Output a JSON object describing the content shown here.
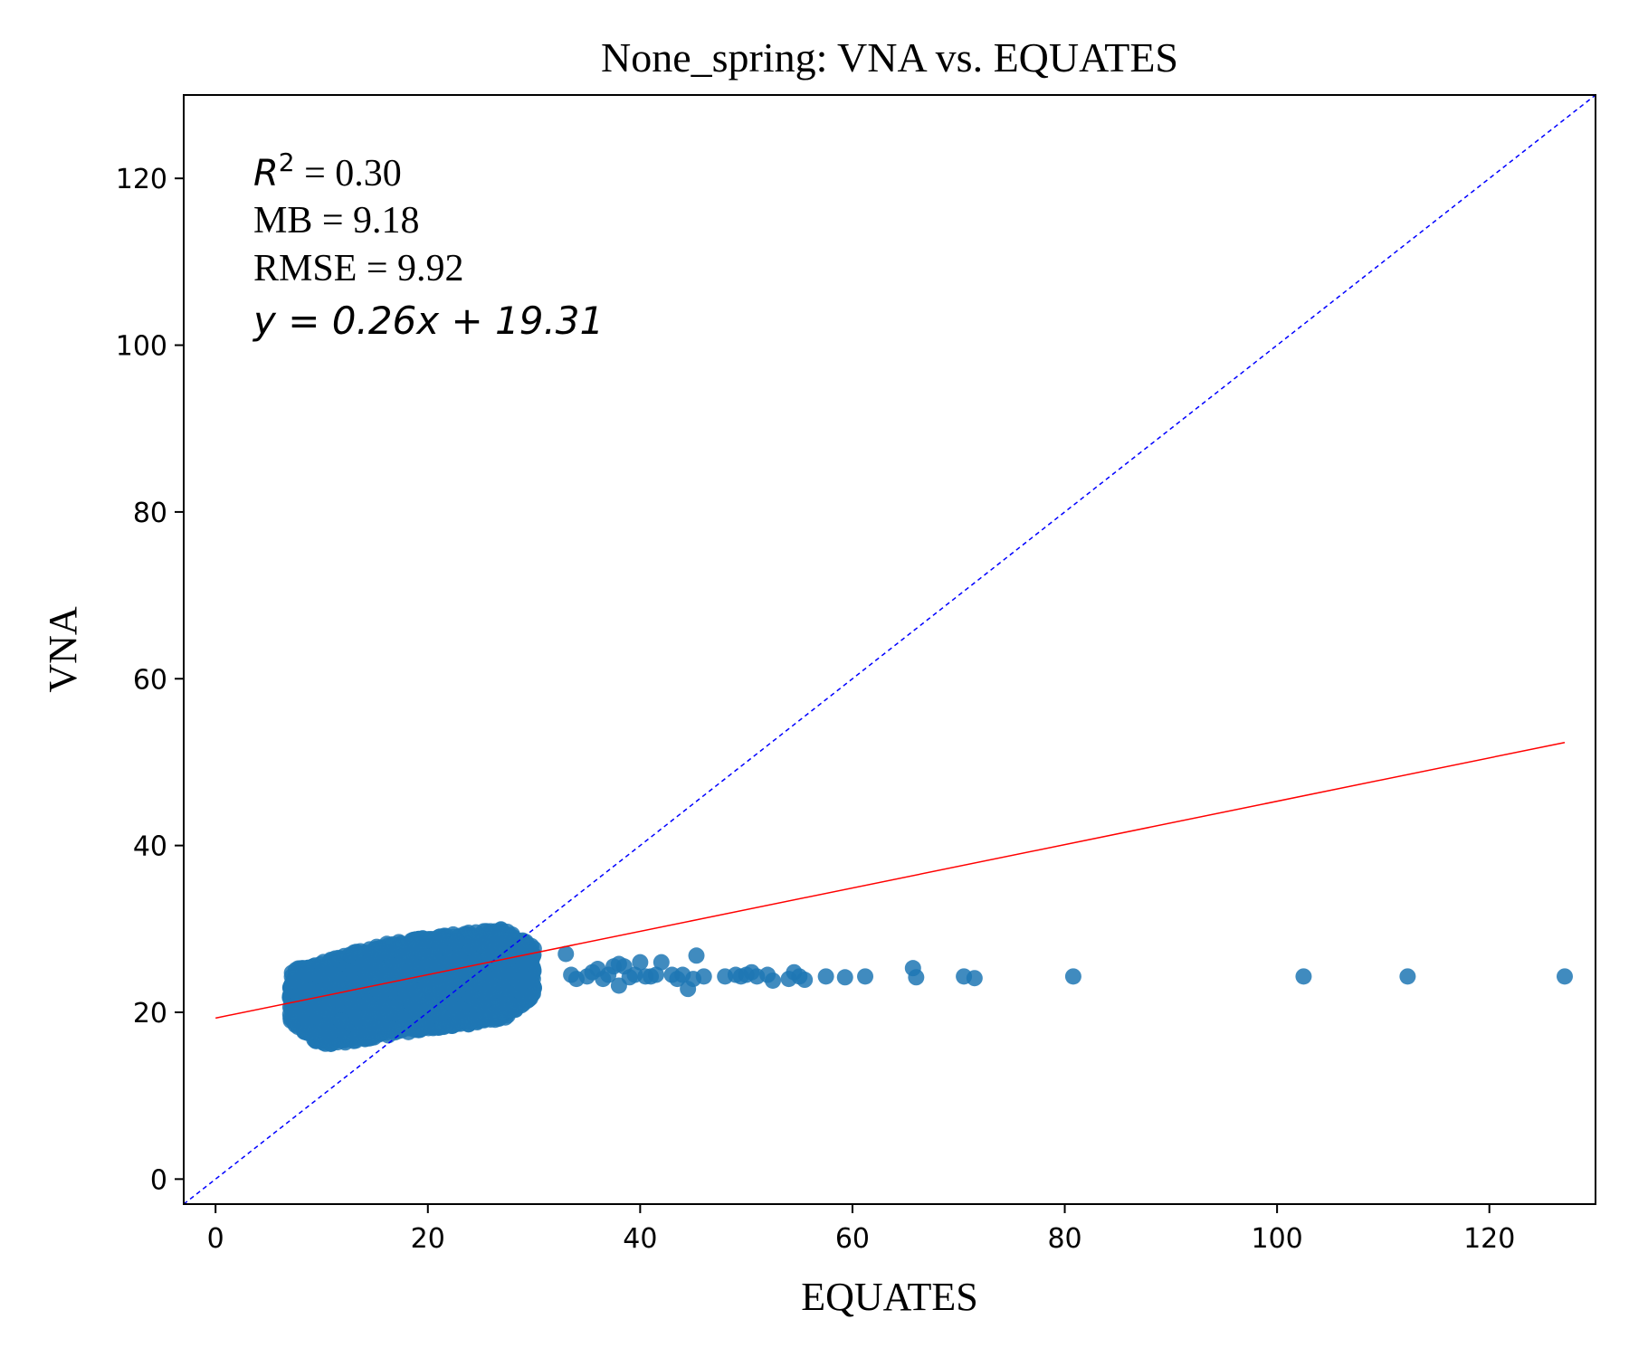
{
  "chart_data": {
    "type": "scatter",
    "title": "None_spring: VNA vs. EQUATES",
    "xlabel": "EQUATES",
    "ylabel": "VNA",
    "xlim": [
      -3,
      130
    ],
    "ylim": [
      -3,
      130
    ],
    "xticks": [
      0,
      20,
      40,
      60,
      80,
      100,
      120
    ],
    "yticks": [
      0,
      20,
      40,
      60,
      80,
      100,
      120
    ],
    "grid": false,
    "point_color": "#1f77b4",
    "dense_cluster": {
      "description_x_range": [
        7,
        30
      ],
      "y_lower": [
        [
          7,
          19
        ],
        [
          10,
          16
        ],
        [
          13,
          16.5
        ],
        [
          20,
          18
        ],
        [
          27,
          19
        ],
        [
          30,
          22
        ]
      ],
      "y_upper": [
        [
          7,
          25
        ],
        [
          10,
          26
        ],
        [
          15,
          28
        ],
        [
          20,
          29
        ],
        [
          27,
          30
        ],
        [
          30,
          28
        ]
      ]
    },
    "points": [
      [
        33,
        27
      ],
      [
        33.5,
        24.5
      ],
      [
        34,
        24
      ],
      [
        35,
        24.3
      ],
      [
        35.5,
        24.8
      ],
      [
        36,
        25.2
      ],
      [
        36.5,
        24
      ],
      [
        37,
        24.5
      ],
      [
        37.5,
        25.5
      ],
      [
        38,
        25.8
      ],
      [
        38,
        23.2
      ],
      [
        38.5,
        25.5
      ],
      [
        39,
        24.2
      ],
      [
        39.5,
        24.5
      ],
      [
        40,
        26
      ],
      [
        40.5,
        24.3
      ],
      [
        41,
        24.3
      ],
      [
        41.5,
        24.5
      ],
      [
        42,
        26
      ],
      [
        43,
        24.5
      ],
      [
        43.5,
        24
      ],
      [
        44,
        24.5
      ],
      [
        44.5,
        22.8
      ],
      [
        45,
        24
      ],
      [
        45.3,
        26.8
      ],
      [
        46,
        24.3
      ],
      [
        48,
        24.3
      ],
      [
        49,
        24.5
      ],
      [
        49.5,
        24.3
      ],
      [
        50,
        24.5
      ],
      [
        50.5,
        24.8
      ],
      [
        51,
        24.3
      ],
      [
        52,
        24.5
      ],
      [
        52.5,
        23.8
      ],
      [
        54,
        24
      ],
      [
        54.5,
        24.8
      ],
      [
        55,
        24.3
      ],
      [
        55.5,
        23.9
      ],
      [
        57.5,
        24.3
      ],
      [
        59.3,
        24.2
      ],
      [
        61.2,
        24.3
      ],
      [
        65.7,
        25.3
      ],
      [
        66,
        24.2
      ],
      [
        70.5,
        24.3
      ],
      [
        71.5,
        24.1
      ],
      [
        80.8,
        24.3
      ],
      [
        102.5,
        24.3
      ],
      [
        112.3,
        24.3
      ],
      [
        127.1,
        24.3
      ]
    ],
    "reference_line": {
      "type": "1:1",
      "color": "#0000ff",
      "style": "dashed"
    },
    "regression_line": {
      "slope": 0.26,
      "intercept": 19.31,
      "x_range": [
        0,
        127.1
      ],
      "color": "#ff0000"
    },
    "stats": {
      "r2_symbol": "R",
      "r2_sup": "2",
      "r2_value": " = 0.30",
      "mb": "MB = 9.18",
      "rmse": "RMSE = 9.92",
      "equation": "y = 0.26x + 19.31"
    }
  }
}
